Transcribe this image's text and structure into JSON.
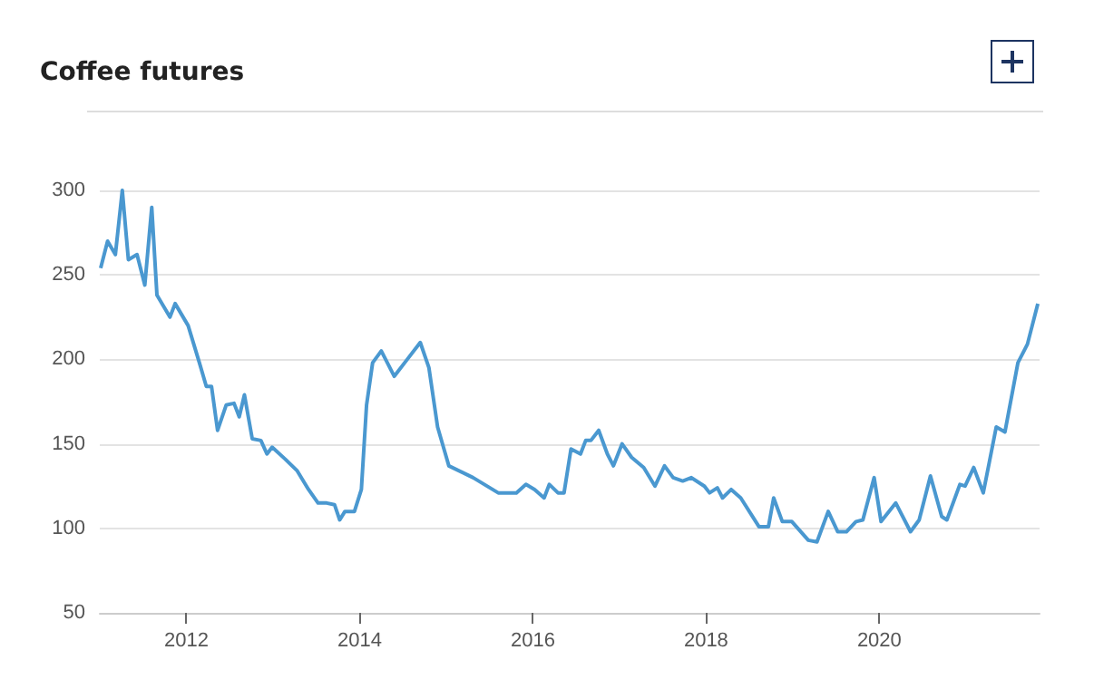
{
  "chart_data": {
    "type": "line",
    "title": "Coffee futures",
    "x": [
      2011.01,
      2011.09,
      2011.18,
      2011.26,
      2011.33,
      2011.43,
      2011.52,
      2011.6,
      2011.66,
      2011.81,
      2011.87,
      2012.02,
      2012.15,
      2012.23,
      2012.29,
      2012.36,
      2012.46,
      2012.55,
      2012.61,
      2012.67,
      2012.76,
      2012.86,
      2012.93,
      2012.99,
      2013.14,
      2013.28,
      2013.41,
      2013.52,
      2013.62,
      2013.71,
      2013.77,
      2013.83,
      2013.94,
      2014.02,
      2014.08,
      2014.15,
      2014.25,
      2014.4,
      2014.55,
      2014.7,
      2014.8,
      2014.9,
      2015.03,
      2015.31,
      2015.6,
      2015.81,
      2015.92,
      2016.02,
      2016.13,
      2016.19,
      2016.29,
      2016.36,
      2016.44,
      2016.55,
      2016.61,
      2016.67,
      2016.76,
      2016.86,
      2016.93,
      2017.03,
      2017.14,
      2017.28,
      2017.41,
      2017.52,
      2017.62,
      2017.73,
      2017.83,
      2017.98,
      2018.04,
      2018.13,
      2018.19,
      2018.29,
      2018.4,
      2018.61,
      2018.72,
      2018.78,
      2018.88,
      2018.99,
      2019.18,
      2019.28,
      2019.41,
      2019.52,
      2019.62,
      2019.73,
      2019.81,
      2019.94,
      2020.02,
      2020.19,
      2020.36,
      2020.46,
      2020.59,
      2020.72,
      2020.78,
      2020.93,
      2020.99,
      2021.09,
      2021.2,
      2021.35,
      2021.45,
      2021.6,
      2021.71,
      2021.83
    ],
    "series": [
      {
        "color": "#4a98d0",
        "values": [
          254,
          270,
          262,
          300,
          259,
          262,
          244,
          290,
          238,
          225,
          233,
          220,
          198,
          184,
          184,
          158,
          173,
          174,
          166,
          179,
          153,
          152,
          144,
          148,
          141,
          134,
          123,
          115,
          115,
          114,
          105,
          110,
          110,
          123,
          173,
          198,
          205,
          190,
          200,
          210,
          195,
          160,
          137,
          130,
          121,
          121,
          126,
          123,
          118,
          126,
          121,
          121,
          147,
          144,
          152,
          152,
          158,
          144,
          137,
          150,
          142,
          136,
          125,
          137,
          130,
          128,
          130,
          125,
          121,
          124,
          118,
          123,
          118,
          101,
          101,
          118,
          104,
          104,
          93,
          92,
          110,
          98,
          98,
          104,
          105,
          130,
          104,
          115,
          98,
          105,
          131,
          107,
          105,
          126,
          125,
          136,
          121,
          160,
          157,
          198,
          209,
          233
        ]
      }
    ],
    "xlim": [
      2011,
      2021.85
    ],
    "xticks": [
      2012,
      2014,
      2016,
      2018,
      2020
    ],
    "ylim": [
      50,
      300
    ],
    "yticks": [
      50,
      100,
      150,
      200,
      250,
      300
    ],
    "grid": "y",
    "marker": "none",
    "line_style": "solid"
  }
}
